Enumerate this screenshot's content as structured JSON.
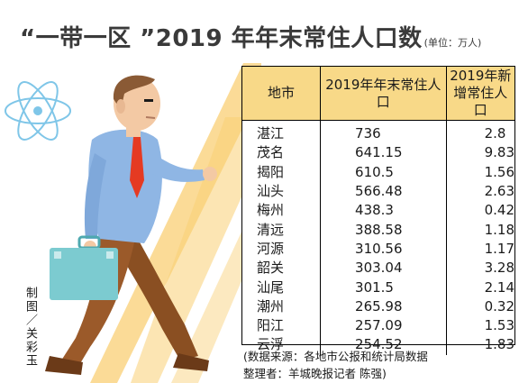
{
  "title": {
    "main": "“一带一区 ”2019 年年末常住人口数",
    "unit": "(单位：万人)"
  },
  "table": {
    "headers": {
      "city": "地市",
      "resident": "2019年年末常住人口",
      "increase": "2019年新增常住人口"
    },
    "rows": [
      {
        "city": "湛江",
        "resident": "736",
        "increase": "2.8"
      },
      {
        "city": "茂名",
        "resident": "641.15",
        "increase": "9.83"
      },
      {
        "city": "揭阳",
        "resident": "610.5",
        "increase": "1.56"
      },
      {
        "city": "汕头",
        "resident": "566.48",
        "increase": "2.63"
      },
      {
        "city": "梅州",
        "resident": "438.3",
        "increase": "0.42"
      },
      {
        "city": "清远",
        "resident": "388.58",
        "increase": "1.18"
      },
      {
        "city": "河源",
        "resident": "310.56",
        "increase": "1.17"
      },
      {
        "city": "韶关",
        "resident": "303.04",
        "increase": "3.28"
      },
      {
        "city": "汕尾",
        "resident": "301.5",
        "increase": "2.14"
      },
      {
        "city": "潮州",
        "resident": "265.98",
        "increase": "0.32"
      },
      {
        "city": "阳江",
        "resident": "257.09",
        "increase": "1.53"
      },
      {
        "city": "云浮",
        "resident": "254.52",
        "increase": "1.83"
      }
    ]
  },
  "credit": "制图／关彩玉",
  "source": {
    "line1": "(数据来源：各地市公报和统计局数据",
    "line2": "整理者：羊城晚报记者  陈强)"
  },
  "colors": {
    "header_bg": "#f8d988",
    "stripes": "#f9cf74",
    "atom": "#7fc6e8",
    "shirt": "#8fb6e4",
    "tie": "#e53a22",
    "pants": "#9b5a2a",
    "briefcase": "#7ccbd0"
  }
}
